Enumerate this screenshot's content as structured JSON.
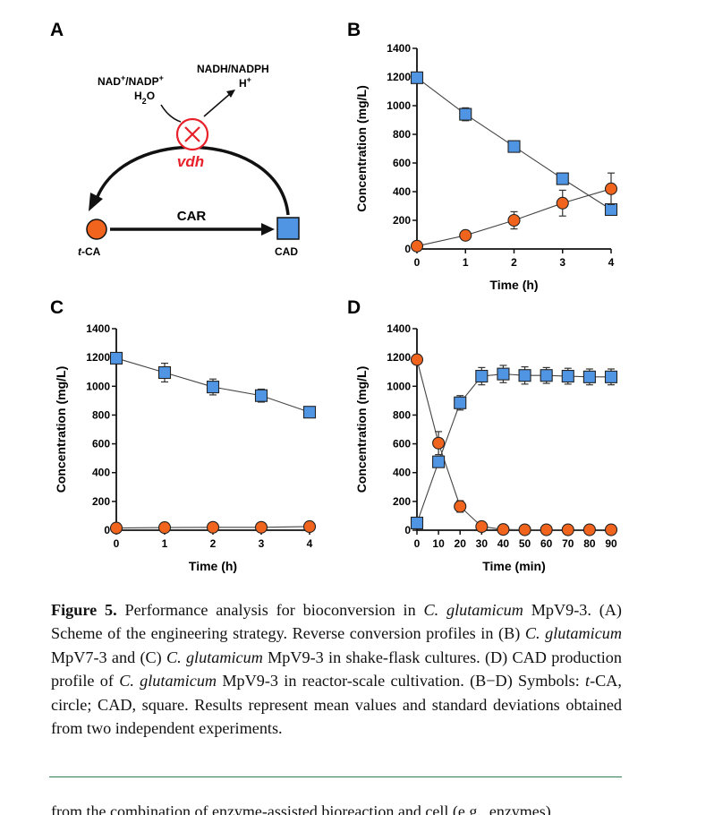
{
  "panels": {
    "A": {
      "letter": "A",
      "cofactors_in_1": "NAD",
      "cofactors_in_sup1": "+",
      "cofactors_in_2": "/NADP",
      "cofactors_in_sup2": "+",
      "water_1": "H",
      "water_sub": "2",
      "water_2": "O",
      "cofactors_out": "NADH/NADPH",
      "proton": "H",
      "proton_sup": "+",
      "deleted_gene": "vdh",
      "enzyme": "CAR",
      "substrate": "t-CA",
      "substrate_italic": "t",
      "substrate_rest": "-CA",
      "product": "CAD",
      "colors": {
        "tca": "#f0641e",
        "cad": "#4f95e4",
        "deletion": "#e8202a"
      }
    }
  },
  "chart_data": [
    {
      "id": "B",
      "letter": "B",
      "type": "line",
      "xlabel": "Time (h)",
      "ylabel": "Concentration (mg/L)",
      "xlim": [
        0,
        4
      ],
      "ylim": [
        0,
        1400
      ],
      "xticks": [
        0,
        1,
        2,
        3,
        4
      ],
      "yticks": [
        0,
        200,
        400,
        600,
        800,
        1000,
        1200,
        1400
      ],
      "grid": false,
      "legend": "none",
      "series": [
        {
          "marker": "square",
          "color": "#4f95e4",
          "x": [
            0,
            1,
            2,
            3,
            4
          ],
          "y": [
            1195,
            940,
            715,
            490,
            275
          ],
          "err": [
            10,
            45,
            30,
            15,
            20
          ]
        },
        {
          "marker": "circle",
          "color": "#f0641e",
          "x": [
            0,
            1,
            2,
            3,
            4
          ],
          "y": [
            20,
            95,
            200,
            320,
            420
          ],
          "err": [
            5,
            10,
            60,
            90,
            110
          ]
        }
      ]
    },
    {
      "id": "C",
      "letter": "C",
      "type": "line",
      "xlabel": "Time (h)",
      "ylabel": "Concentration (mg/L)",
      "xlim": [
        0,
        4
      ],
      "ylim": [
        0,
        1400
      ],
      "xticks": [
        0,
        1,
        2,
        3,
        4
      ],
      "yticks": [
        0,
        200,
        400,
        600,
        800,
        1000,
        1200,
        1400
      ],
      "grid": false,
      "legend": "none",
      "series": [
        {
          "marker": "square",
          "color": "#4f95e4",
          "x": [
            0,
            1,
            2,
            3,
            4
          ],
          "y": [
            1195,
            1095,
            995,
            935,
            820
          ],
          "err": [
            10,
            65,
            55,
            45,
            35
          ]
        },
        {
          "marker": "circle",
          "color": "#f0641e",
          "x": [
            0,
            1,
            2,
            3,
            4
          ],
          "y": [
            15,
            18,
            20,
            20,
            25
          ],
          "err": [
            3,
            3,
            3,
            3,
            3
          ]
        }
      ]
    },
    {
      "id": "D",
      "letter": "D",
      "type": "line",
      "xlabel": "Time (min)",
      "ylabel": "Concentration (mg/L)",
      "xlim": [
        0,
        90
      ],
      "ylim": [
        0,
        1400
      ],
      "xticks": [
        0,
        10,
        20,
        30,
        40,
        50,
        60,
        70,
        80,
        90
      ],
      "yticks": [
        0,
        200,
        400,
        600,
        800,
        1000,
        1200,
        1400
      ],
      "grid": false,
      "legend": "none",
      "series": [
        {
          "marker": "square",
          "color": "#4f95e4",
          "x": [
            0,
            10,
            20,
            30,
            40,
            50,
            60,
            70,
            80,
            90
          ],
          "y": [
            50,
            475,
            885,
            1070,
            1085,
            1075,
            1075,
            1070,
            1065,
            1065
          ],
          "err": [
            10,
            20,
            50,
            60,
            60,
            60,
            55,
            55,
            55,
            55
          ]
        },
        {
          "marker": "circle",
          "color": "#f0641e",
          "x": [
            0,
            10,
            20,
            30,
            40,
            50,
            60,
            70,
            80,
            90
          ],
          "y": [
            1185,
            605,
            165,
            25,
            5,
            3,
            3,
            3,
            3,
            3
          ],
          "err": [
            10,
            80,
            40,
            10,
            5,
            3,
            3,
            3,
            3,
            3
          ]
        }
      ]
    }
  ],
  "caption": {
    "figure_label": "Figure 5.",
    "segments": [
      {
        "t": " Performance analysis for bioconversion in "
      },
      {
        "t": "C. glutamicum",
        "i": true
      },
      {
        "t": " MpV9-3. (A) Scheme of the engineering strategy. Reverse conversion profiles in (B) "
      },
      {
        "t": "C. glutamicum",
        "i": true
      },
      {
        "t": " MpV7-3 and (C) "
      },
      {
        "t": "C. glutamicum",
        "i": true
      },
      {
        "t": " MpV9-3 in shake-flask cultures. (D) CAD production profile of "
      },
      {
        "t": "C. glutamicum",
        "i": true
      },
      {
        "t": " MpV9-3 in reactor-scale cultivation. (B−D) Symbols: "
      },
      {
        "t": "t",
        "i": true
      },
      {
        "t": "-CA, circle; CAD, square. Results represent mean values and standard deviations obtained from two independent experiments."
      }
    ]
  },
  "next_text": "from the combination of enzyme-assisted bioreaction and cell (e.g., enzymes)"
}
